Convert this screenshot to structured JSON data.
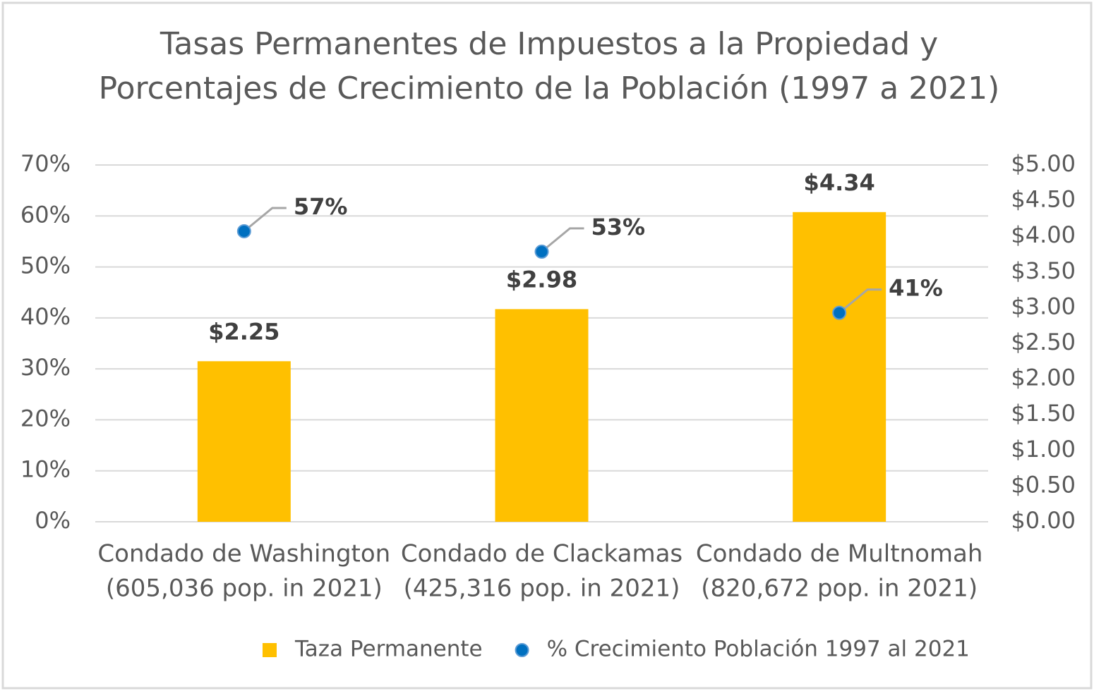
{
  "chart_data": {
    "type": "bar",
    "title": [
      "Tasas Permanentes de Impuestos a la Propiedad y",
      "Porcentajes de Crecimiento de la Población (1997 a 2021)"
    ],
    "categories": [
      [
        "Condado de Washington",
        "(605,036 pop. in 2021)"
      ],
      [
        "Condado de Clackamas",
        "(425,316 pop. in 2021)"
      ],
      [
        "Condado de Multnomah",
        "(820,672 pop. in 2021)"
      ]
    ],
    "series": [
      {
        "name": "Taza Permanente",
        "type": "bar",
        "axis": "y2",
        "color": "#ffc000",
        "values": [
          2.25,
          2.98,
          4.34
        ],
        "value_labels": [
          "$2.25",
          "$2.98",
          "$4.34"
        ]
      },
      {
        "name": "% Crecimiento Población 1997 al 2021",
        "type": "scatter",
        "axis": "y",
        "color": "#0070c0",
        "values": [
          57,
          53,
          41
        ],
        "value_labels": [
          "57%",
          "53%",
          "41%"
        ]
      }
    ],
    "ylim": [
      0,
      70
    ],
    "yticks": [
      {
        "value": 0,
        "label": "0%"
      },
      {
        "value": 10,
        "label": "10%"
      },
      {
        "value": 20,
        "label": "20%"
      },
      {
        "value": 30,
        "label": "30%"
      },
      {
        "value": 40,
        "label": "40%"
      },
      {
        "value": 50,
        "label": "50%"
      },
      {
        "value": 60,
        "label": "60%"
      },
      {
        "value": 70,
        "label": "70%"
      }
    ],
    "y2lim": [
      0,
      5
    ],
    "y2ticks": [
      {
        "value": 0,
        "label": "$0.00"
      },
      {
        "value": 0.5,
        "label": "$0.50"
      },
      {
        "value": 1,
        "label": "$1.00"
      },
      {
        "value": 1.5,
        "label": "$1.50"
      },
      {
        "value": 2,
        "label": "$2.00"
      },
      {
        "value": 2.5,
        "label": "$2.50"
      },
      {
        "value": 3,
        "label": "$3.00"
      },
      {
        "value": 3.5,
        "label": "$3.50"
      },
      {
        "value": 4,
        "label": "$4.00"
      },
      {
        "value": 4.5,
        "label": "$4.50"
      },
      {
        "value": 5,
        "label": "$5.00"
      }
    ],
    "grid": true,
    "legend": "bottom"
  }
}
